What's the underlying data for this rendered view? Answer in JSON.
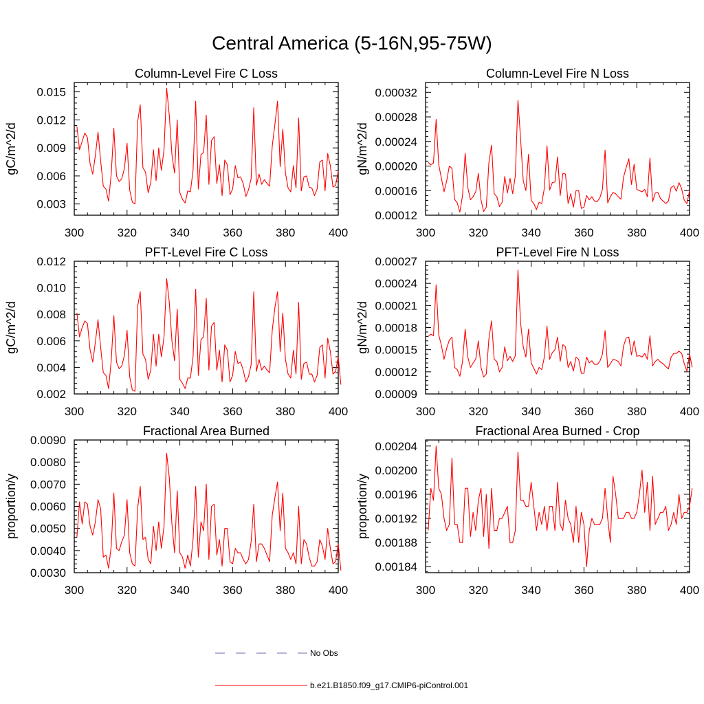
{
  "figure": {
    "title": "Central America (5-16N,95-75W)"
  },
  "legend": {
    "entries": [
      {
        "label": "No Obs",
        "color": "#6a6aaa",
        "dashed": true
      },
      {
        "label": "b.e21.B1850.f09_g17.CMIP6-piControl.001",
        "color": "#ff0000",
        "dashed": false
      }
    ]
  },
  "chart_data": [
    {
      "type": "line",
      "title": "Column-Level Fire C Loss",
      "ylabel": "gC/m^2/d",
      "xlim": [
        300,
        400
      ],
      "ylim": [
        0.0018,
        0.016
      ],
      "xticks": [
        300,
        320,
        340,
        360,
        380,
        400
      ],
      "xticklabels": [
        "300",
        "320",
        "340",
        "360",
        "380",
        "400"
      ],
      "yticks": [
        0.003,
        0.006,
        0.009,
        0.012,
        0.015
      ],
      "yticklabels": [
        "0.003",
        "0.006",
        "0.009",
        "0.012",
        "0.015"
      ],
      "grid": false,
      "x_start": 301,
      "series": [
        {
          "color": "#ff0000",
          "values": [
            0.0113,
            0.0088,
            0.0097,
            0.0106,
            0.0101,
            0.0073,
            0.0062,
            0.0082,
            0.0107,
            0.0076,
            0.0049,
            0.0046,
            0.0033,
            0.0062,
            0.0111,
            0.006,
            0.0054,
            0.0057,
            0.0068,
            0.0095,
            0.0045,
            0.0032,
            0.003,
            0.0118,
            0.0136,
            0.0069,
            0.0064,
            0.0042,
            0.0053,
            0.0088,
            0.0055,
            0.009,
            0.0066,
            0.0088,
            0.0154,
            0.0125,
            0.0083,
            0.0063,
            0.012,
            0.0042,
            0.0035,
            0.0031,
            0.0044,
            0.0043,
            0.0066,
            0.014,
            0.0046,
            0.0083,
            0.0085,
            0.0125,
            0.0051,
            0.0098,
            0.0102,
            0.0052,
            0.0072,
            0.0039,
            0.0077,
            0.0072,
            0.004,
            0.0046,
            0.0071,
            0.0058,
            0.0059,
            0.0052,
            0.0038,
            0.0045,
            0.0057,
            0.0133,
            0.005,
            0.0062,
            0.0051,
            0.0056,
            0.0052,
            0.0049,
            0.0092,
            0.0115,
            0.014,
            0.007,
            0.011,
            0.0063,
            0.0047,
            0.0043,
            0.0071,
            0.0047,
            0.0122,
            0.0044,
            0.0059,
            0.006,
            0.0048,
            0.0047,
            0.0039,
            0.0046,
            0.0075,
            0.0077,
            0.0044,
            0.0084,
            0.0071,
            0.0048,
            0.005,
            0.0065
          ]
        }
      ]
    },
    {
      "type": "line",
      "title": "Column-Level Fire N Loss",
      "ylabel": "gN/m^2/d",
      "xlim": [
        300,
        400
      ],
      "ylim": [
        0.00012,
        0.000336
      ],
      "xticks": [
        300,
        320,
        340,
        360,
        380,
        400
      ],
      "xticklabels": [
        "300",
        "320",
        "340",
        "360",
        "380",
        "400"
      ],
      "yticks": [
        0.00012,
        0.00016,
        0.0002,
        0.00024,
        0.00028,
        0.00032
      ],
      "yticklabels": [
        "0.00012",
        "0.00016",
        "0.00020",
        "0.00024",
        "0.00028",
        "0.00032"
      ],
      "grid": false,
      "x_start": 301,
      "series": [
        {
          "color": "#ff0000",
          "values": [
            0.000206,
            0.000202,
            0.000205,
            0.000276,
            0.000202,
            0.00018,
            0.000158,
            0.000176,
            0.0002,
            0.000196,
            0.000146,
            0.00014,
            0.000125,
            0.000152,
            0.000221,
            0.000165,
            0.000145,
            0.00015,
            0.000158,
            0.000188,
            0.000145,
            0.000126,
            0.000133,
            0.000206,
            0.000234,
            0.000155,
            0.00015,
            0.000134,
            0.000141,
            0.000183,
            0.000156,
            0.00018,
            0.000155,
            0.000184,
            0.000307,
            0.000244,
            0.000176,
            0.00016,
            0.000219,
            0.000144,
            0.000139,
            0.000129,
            0.000141,
            0.000139,
            0.000164,
            0.000233,
            0.000161,
            0.000173,
            0.000174,
            0.000215,
            0.000152,
            0.000188,
            0.000187,
            0.000139,
            0.000155,
            0.000133,
            0.00016,
            0.00016,
            0.000131,
            0.000133,
            0.000152,
            0.000145,
            0.00015,
            0.000143,
            0.000142,
            0.000148,
            0.000162,
            0.000226,
            0.00014,
            0.00015,
            0.000157,
            0.000155,
            0.00015,
            0.000146,
            0.000182,
            0.000198,
            0.000212,
            0.00017,
            0.000203,
            0.000162,
            0.00016,
            0.000158,
            0.000162,
            0.00015,
            0.000213,
            0.000142,
            0.000156,
            0.000157,
            0.000147,
            0.000143,
            0.000139,
            0.000143,
            0.000165,
            0.000168,
            0.000159,
            0.000173,
            0.000163,
            0.000144,
            0.000139,
            0.00016
          ]
        }
      ]
    },
    {
      "type": "line",
      "title": "PFT-Level Fire C Loss",
      "ylabel": "gC/m^2/d",
      "xlim": [
        300,
        400
      ],
      "ylim": [
        0.002,
        0.012
      ],
      "xticks": [
        300,
        320,
        340,
        360,
        380,
        400
      ],
      "xticklabels": [
        "300",
        "320",
        "340",
        "360",
        "380",
        "400"
      ],
      "yticks": [
        0.002,
        0.004,
        0.006,
        0.008,
        0.01,
        0.012
      ],
      "yticklabels": [
        "0.002",
        "0.004",
        "0.006",
        "0.008",
        "0.010",
        "0.012"
      ],
      "grid": false,
      "x_start": 301,
      "series": [
        {
          "color": "#ff0000",
          "values": [
            0.0081,
            0.0063,
            0.007,
            0.0075,
            0.0073,
            0.0053,
            0.0044,
            0.0059,
            0.0076,
            0.0055,
            0.0036,
            0.0034,
            0.0024,
            0.0045,
            0.0079,
            0.0044,
            0.0039,
            0.0041,
            0.0049,
            0.0068,
            0.0033,
            0.0023,
            0.0022,
            0.0086,
            0.0097,
            0.005,
            0.0046,
            0.0031,
            0.0038,
            0.0065,
            0.0041,
            0.0065,
            0.0048,
            0.0063,
            0.0107,
            0.0089,
            0.006,
            0.0045,
            0.0084,
            0.0031,
            0.0028,
            0.0024,
            0.0032,
            0.0032,
            0.0048,
            0.0099,
            0.0034,
            0.0061,
            0.0063,
            0.0092,
            0.0038,
            0.0071,
            0.0074,
            0.0038,
            0.0053,
            0.0029,
            0.0057,
            0.0053,
            0.0029,
            0.0034,
            0.0052,
            0.0043,
            0.0044,
            0.0038,
            0.0029,
            0.0033,
            0.0042,
            0.0097,
            0.0037,
            0.0046,
            0.0038,
            0.0041,
            0.0038,
            0.0036,
            0.0068,
            0.0085,
            0.0097,
            0.0052,
            0.0081,
            0.0046,
            0.0035,
            0.0032,
            0.0053,
            0.0035,
            0.0089,
            0.0031,
            0.0043,
            0.0044,
            0.0035,
            0.0035,
            0.0029,
            0.0034,
            0.0055,
            0.0057,
            0.0032,
            0.0062,
            0.0052,
            0.0035,
            0.0037,
            0.0048,
            0.0027
          ]
        }
      ]
    },
    {
      "type": "line",
      "title": "PFT-Level Fire N Loss",
      "ylabel": "gN/m^2/d",
      "xlim": [
        300,
        400
      ],
      "ylim": [
        9e-05,
        0.00027
      ],
      "xticks": [
        300,
        320,
        340,
        360,
        380,
        400
      ],
      "xticklabels": [
        "300",
        "320",
        "340",
        "360",
        "380",
        "400"
      ],
      "yticks": [
        9e-05,
        0.00012,
        0.00015,
        0.00018,
        0.00021,
        0.00024,
        0.00027
      ],
      "yticklabels": [
        "0.00009",
        "0.00012",
        "0.00015",
        "0.00018",
        "0.00021",
        "0.00024",
        "0.00027"
      ],
      "grid": false,
      "x_start": 301,
      "series": [
        {
          "color": "#ff0000",
          "values": [
            0.000168,
            0.000171,
            0.000169,
            0.000238,
            0.00017,
            0.000156,
            0.000137,
            0.000152,
            0.000163,
            0.000167,
            0.000126,
            0.000123,
            0.000114,
            0.000134,
            0.000178,
            0.00014,
            0.000126,
            0.000132,
            0.000137,
            0.000162,
            0.000126,
            0.000113,
            0.000117,
            0.000165,
            0.000189,
            0.000137,
            0.000134,
            0.00012,
            0.000126,
            0.000154,
            0.000135,
            0.000141,
            0.000134,
            0.000142,
            0.000258,
            0.000186,
            0.000154,
            0.00014,
            0.000178,
            0.000132,
            0.000125,
            0.000117,
            0.000126,
            0.000123,
            0.00014,
            0.000182,
            0.000137,
            0.000146,
            0.00015,
            0.000167,
            0.000134,
            0.000157,
            0.000154,
            0.000126,
            0.000134,
            0.000121,
            0.00014,
            0.000137,
            0.000118,
            0.000118,
            0.00014,
            0.000132,
            0.000135,
            0.00013,
            0.00013,
            0.000134,
            0.000144,
            0.000176,
            0.000126,
            0.000131,
            0.000137,
            0.000136,
            0.000134,
            0.000128,
            0.000155,
            0.000166,
            0.000167,
            0.000143,
            0.000162,
            0.000141,
            0.000142,
            0.00014,
            0.000145,
            0.000137,
            0.000169,
            0.000128,
            0.000134,
            0.000137,
            0.000133,
            0.000131,
            0.000127,
            0.000124,
            0.00014,
            0.000145,
            0.000145,
            0.000148,
            0.000145,
            0.000131,
            0.000121,
            0.000144,
            0.000126
          ]
        }
      ]
    },
    {
      "type": "line",
      "title": "Fractional Area Burned",
      "ylabel": "proportion/y",
      "xlim": [
        300,
        400
      ],
      "ylim": [
        0.003,
        0.009
      ],
      "xticks": [
        300,
        320,
        340,
        360,
        380,
        400
      ],
      "xticklabels": [
        "300",
        "320",
        "340",
        "360",
        "380",
        "400"
      ],
      "yticks": [
        0.003,
        0.004,
        0.005,
        0.006,
        0.007,
        0.008,
        0.009
      ],
      "yticklabels": [
        "0.0030",
        "0.0040",
        "0.0050",
        "0.0060",
        "0.0070",
        "0.0080",
        "0.0090"
      ],
      "grid": false,
      "x_start": 301,
      "series": [
        {
          "color": "#ff0000",
          "values": [
            0.0046,
            0.0062,
            0.0052,
            0.0062,
            0.0061,
            0.0051,
            0.0047,
            0.0053,
            0.0063,
            0.0059,
            0.0037,
            0.0038,
            0.0032,
            0.0042,
            0.0066,
            0.0041,
            0.004,
            0.0044,
            0.0047,
            0.0063,
            0.0039,
            0.0034,
            0.0033,
            0.0059,
            0.0069,
            0.0045,
            0.0046,
            0.0036,
            0.0034,
            0.0051,
            0.004,
            0.0053,
            0.0041,
            0.0051,
            0.0084,
            0.0073,
            0.0052,
            0.0039,
            0.0067,
            0.0039,
            0.0037,
            0.0032,
            0.0038,
            0.0033,
            0.0045,
            0.0069,
            0.0037,
            0.0053,
            0.0049,
            0.007,
            0.0036,
            0.006,
            0.0061,
            0.0038,
            0.0045,
            0.0033,
            0.005,
            0.005,
            0.0035,
            0.0034,
            0.0041,
            0.0039,
            0.0039,
            0.0036,
            0.0034,
            0.0036,
            0.0044,
            0.0061,
            0.0035,
            0.0043,
            0.0043,
            0.0041,
            0.0038,
            0.0035,
            0.0056,
            0.0064,
            0.0071,
            0.0049,
            0.0066,
            0.0041,
            0.0039,
            0.0036,
            0.0039,
            0.0034,
            0.006,
            0.0034,
            0.0045,
            0.0043,
            0.0037,
            0.0033,
            0.0033,
            0.0035,
            0.0045,
            0.0042,
            0.0036,
            0.005,
            0.0041,
            0.0034,
            0.0035,
            0.0043,
            0.0031
          ]
        }
      ]
    },
    {
      "type": "line",
      "title": "Fractional Area Burned - Crop",
      "ylabel": "proportion/y",
      "xlim": [
        300,
        400
      ],
      "ylim": [
        0.00183,
        0.00205
      ],
      "xticks": [
        300,
        320,
        340,
        360,
        380,
        400
      ],
      "xticklabels": [
        "300",
        "320",
        "340",
        "360",
        "380",
        "400"
      ],
      "yticks": [
        0.00184,
        0.00188,
        0.00192,
        0.00196,
        0.002,
        0.00204
      ],
      "yticklabels": [
        "0.00184",
        "0.00188",
        "0.00192",
        "0.00196",
        "0.00200",
        "0.00204"
      ],
      "grid": false,
      "x_start": 301,
      "series": [
        {
          "color": "#ff0000",
          "values": [
            0.0019,
            0.00197,
            0.00195,
            0.00204,
            0.00197,
            0.00196,
            0.00192,
            0.0019,
            0.00191,
            0.00202,
            0.00191,
            0.00191,
            0.00188,
            0.00188,
            0.00197,
            0.00197,
            0.00189,
            0.00193,
            0.0019,
            0.00195,
            0.00197,
            0.00189,
            0.00196,
            0.00187,
            0.00197,
            0.0019,
            0.0019,
            0.00192,
            0.00192,
            0.00193,
            0.00194,
            0.00188,
            0.00188,
            0.0019,
            0.00203,
            0.00195,
            0.00195,
            0.00194,
            0.00194,
            0.00198,
            0.00194,
            0.0019,
            0.00193,
            0.00191,
            0.00194,
            0.0019,
            0.00194,
            0.00194,
            0.0019,
            0.00198,
            0.00191,
            0.0019,
            0.00195,
            0.00192,
            0.00191,
            0.00188,
            0.00194,
            0.00188,
            0.00193,
            0.00191,
            0.00184,
            0.0019,
            0.00192,
            0.00191,
            0.00191,
            0.00191,
            0.00192,
            0.00197,
            0.00192,
            0.00188,
            0.00199,
            0.00196,
            0.00192,
            0.00192,
            0.00192,
            0.00193,
            0.00193,
            0.00192,
            0.00192,
            0.00193,
            0.00196,
            0.002,
            0.00193,
            0.00198,
            0.0019,
            0.00199,
            0.00191,
            0.00192,
            0.00193,
            0.00193,
            0.00194,
            0.0019,
            0.00191,
            0.00193,
            0.00191,
            0.00196,
            0.00192,
            0.00193,
            0.00193,
            0.00194,
            0.00197
          ]
        }
      ]
    }
  ]
}
